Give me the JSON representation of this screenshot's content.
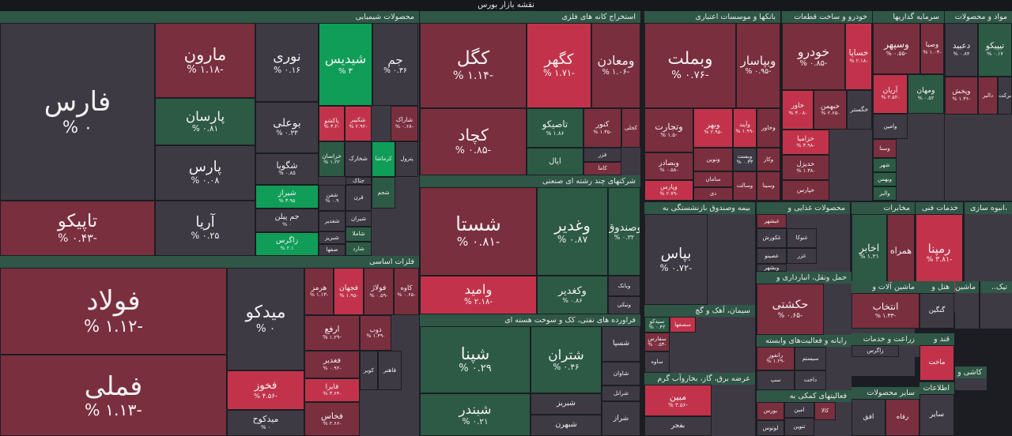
{
  "page_title": "نقشه بازار بورس",
  "colors": {
    "up_strong": "#0f9d58",
    "up": "#2d5a45",
    "flat": "#3e3a44",
    "down": "#7a2f3e",
    "down_strong": "#c2334b",
    "header": "#2f5647"
  },
  "chart_data": {
    "type": "treemap",
    "title": "نقشه بازار بورس",
    "sectors": [
      {
        "name": "محصولات شیمیایی",
        "tiles": [
          {
            "sym": "فارس",
            "chg": "% ۰",
            "tone": "flat"
          },
          {
            "sym": "تاپیکو",
            "chg": "% ۰.۴۳-",
            "tone": "down"
          },
          {
            "sym": "مارون",
            "chg": "% ۱.۱۸-",
            "tone": "down"
          },
          {
            "sym": "پارسان",
            "chg": "% ۰.۸۱",
            "tone": "up"
          },
          {
            "sym": "پارس",
            "chg": "% ۰.۰۸",
            "tone": "flat"
          },
          {
            "sym": "آریا",
            "chg": "% ۰.۲۵",
            "tone": "flat"
          },
          {
            "sym": "نوری",
            "chg": "% ۰.۱۶",
            "tone": "flat"
          },
          {
            "sym": "بوعلی",
            "chg": "% ۰.۳۳",
            "tone": "flat"
          },
          {
            "sym": "شیدیس",
            "chg": "% ۳",
            "tone": "up_strong"
          },
          {
            "sym": "جم",
            "chg": "% ۰.۳۶",
            "tone": "flat"
          },
          {
            "sym": "پاکشو",
            "chg": "% ۳.۲-",
            "tone": "down_strong"
          },
          {
            "sym": "شکبیر",
            "chg": "% ۲.۹۲-",
            "tone": "down_strong"
          },
          {
            "sym": "شاراک",
            "chg": "% ۰.۶۸-",
            "tone": "down"
          },
          {
            "sym": "شگویا",
            "chg": "% ۰.۸۵",
            "tone": "flat"
          },
          {
            "sym": "خراسان",
            "chg": "% ۱.۲۲",
            "tone": "up"
          },
          {
            "sym": "شخارک",
            "chg": "",
            "tone": "flat"
          },
          {
            "sym": "کرماشا",
            "chg": "",
            "tone": "up_strong"
          },
          {
            "sym": "پترول",
            "chg": "",
            "tone": "flat"
          },
          {
            "sym": "شیراز",
            "chg": "% ۳.۹۵",
            "tone": "up_strong"
          },
          {
            "sym": "شفن",
            "chg": "% ۰.۹",
            "tone": "flat"
          },
          {
            "sym": "قرن",
            "chg": "",
            "tone": "flat"
          },
          {
            "sym": "جم پیلن",
            "chg": "% ۰",
            "tone": "flat"
          },
          {
            "sym": "شغدیر",
            "chg": "",
            "tone": "flat"
          },
          {
            "sym": "زاگرس",
            "chg": "% ۲.۱",
            "tone": "up_strong"
          },
          {
            "sym": "شبریز",
            "chg": "",
            "tone": "flat"
          },
          {
            "sym": "شیران",
            "chg": "",
            "tone": "flat"
          },
          {
            "sym": "صفها",
            "chg": "",
            "tone": "flat"
          },
          {
            "sym": "شاملا",
            "chg": "",
            "tone": "up"
          },
          {
            "sym": "شارد",
            "chg": "",
            "tone": "up"
          },
          {
            "sym": "شجم",
            "chg": "",
            "tone": "up"
          },
          {
            "sym": "جتاک",
            "chg": "",
            "tone": "flat"
          }
        ]
      },
      {
        "name": "فلزات اساسی",
        "tiles": [
          {
            "sym": "فولاد",
            "chg": "% ۱.۱۲-",
            "tone": "down"
          },
          {
            "sym": "فملی",
            "chg": "% ۱.۱۳-",
            "tone": "down"
          },
          {
            "sym": "میدکو",
            "chg": "% ۰",
            "tone": "flat"
          },
          {
            "sym": "فخوز",
            "chg": "% ۴.۵۶-",
            "tone": "down_strong"
          },
          {
            "sym": "میدکوح",
            "chg": "% ۰",
            "tone": "flat"
          },
          {
            "sym": "هرمز",
            "chg": "% ۱.۱۳-",
            "tone": "down"
          },
          {
            "sym": "فجهان",
            "chg": "% ۱.۹۵-",
            "tone": "down_strong"
          },
          {
            "sym": "فولاژ",
            "chg": "% ۰.۵۹-",
            "tone": "down"
          },
          {
            "sym": "کاوه",
            "chg": "% ۰.۶۵-",
            "tone": "down"
          },
          {
            "sym": "ارفع",
            "chg": "% ۱.۲۹-",
            "tone": "down"
          },
          {
            "sym": "ذوب",
            "chg": "% ۱.۴۹-",
            "tone": "down"
          },
          {
            "sym": "فغدیر",
            "chg": "% ۰.۹۲-",
            "tone": "down"
          },
          {
            "sym": "فایرا",
            "chg": "% ۳.۶۴-",
            "tone": "down_strong"
          },
          {
            "sym": "فخاس",
            "chg": "% ۲.۶۶-",
            "tone": "down"
          },
          {
            "sym": "فاهنر",
            "chg": "",
            "tone": "flat"
          },
          {
            "sym": "کویر",
            "chg": "",
            "tone": "flat"
          }
        ]
      },
      {
        "name": "استخراج کانه های فلزی",
        "tiles": [
          {
            "sym": "کگل",
            "chg": "% ۱.۱۴-",
            "tone": "down"
          },
          {
            "sym": "کچاد",
            "chg": "% ۰.۸۵-",
            "tone": "down"
          },
          {
            "sym": "کگهر",
            "chg": "% ۱.۷۱-",
            "tone": "down_strong"
          },
          {
            "sym": "ومعادن",
            "chg": "% ۱.۰۶-",
            "tone": "down"
          },
          {
            "sym": "تاصیکو",
            "chg": "% ۱.۸۶",
            "tone": "up"
          },
          {
            "sym": "کنور",
            "chg": "% ۱.۳۵-",
            "tone": "down"
          },
          {
            "sym": "کجلی",
            "chg": "",
            "tone": "down"
          },
          {
            "sym": "فزر",
            "chg": "",
            "tone": "flat"
          },
          {
            "sym": "ایال",
            "chg": "",
            "tone": "up"
          },
          {
            "sym": "کاما",
            "chg": "",
            "tone": "down"
          }
        ]
      },
      {
        "name": "شرکتهای چند رشته ای صنعتی",
        "tiles": [
          {
            "sym": "شستا",
            "chg": "% ۰.۸۱-",
            "tone": "down"
          },
          {
            "sym": "وغدیر",
            "chg": "% ۰.۸۷",
            "tone": "up"
          },
          {
            "sym": "وصندوق",
            "chg": "% ۰.۳۲",
            "tone": "up"
          },
          {
            "sym": "وامید",
            "chg": "% ۲.۱۸-",
            "tone": "down_strong"
          },
          {
            "sym": "وکغدیر",
            "chg": "% ۰.۸۶",
            "tone": "up"
          },
          {
            "sym": "وبانک",
            "chg": "",
            "tone": "flat"
          },
          {
            "sym": "ونیکی",
            "chg": "",
            "tone": "flat"
          }
        ]
      },
      {
        "name": "فراورده های نفتی، کک و سوخت هسته ای",
        "tiles": [
          {
            "sym": "شپنا",
            "chg": "% ۰.۲۹",
            "tone": "up"
          },
          {
            "sym": "شتران",
            "chg": "% ۰.۴۶",
            "tone": "up"
          },
          {
            "sym": "شبندر",
            "chg": "% ۰.۲۱",
            "tone": "up"
          },
          {
            "sym": "شبریز",
            "chg": "",
            "tone": "flat"
          },
          {
            "sym": "شبهرن",
            "chg": "",
            "tone": "flat"
          },
          {
            "sym": "شسپا",
            "chg": "",
            "tone": "flat"
          },
          {
            "sym": "شراز",
            "chg": "",
            "tone": "flat"
          },
          {
            "sym": "شاوان",
            "chg": "",
            "tone": "flat"
          },
          {
            "sym": "شرانل",
            "chg": "",
            "tone": "flat"
          }
        ]
      },
      {
        "name": "بانکها و موسسات اعتباری",
        "tiles": [
          {
            "sym": "وبملت",
            "chg": "% ۰.۷۶-",
            "tone": "down"
          },
          {
            "sym": "وبپاسار",
            "chg": "% ۰.۹۵-",
            "tone": "down"
          },
          {
            "sym": "وتجارت",
            "chg": "% ۱.۵-",
            "tone": "down"
          },
          {
            "sym": "وبصادر",
            "chg": "% ۰.۵۸-",
            "tone": "down"
          },
          {
            "sym": "وپارس",
            "chg": "% ۲.۷۹-",
            "tone": "down_strong"
          },
          {
            "sym": "وبهر",
            "chg": "% ۲.۹۵-",
            "tone": "down_strong"
          },
          {
            "sym": "وآیند",
            "chg": "% ۱.۹۹-",
            "tone": "down_strong"
          },
          {
            "sym": "وخاور",
            "chg": "",
            "tone": "down"
          },
          {
            "sym": "ونوین",
            "chg": "",
            "tone": "down"
          },
          {
            "sym": "وبست",
            "chg": "% ۰.۳۳",
            "tone": "flat"
          },
          {
            "sym": "وکار",
            "chg": "",
            "tone": "down"
          },
          {
            "sym": "سامان",
            "chg": "",
            "tone": "down"
          },
          {
            "sym": "وسالت",
            "chg": "",
            "tone": "down"
          },
          {
            "sym": "دی",
            "chg": "",
            "tone": "down"
          },
          {
            "sym": "وسینا",
            "chg": "",
            "tone": "down"
          }
        ]
      },
      {
        "name": "خودرو و ساخت قطعات",
        "tiles": [
          {
            "sym": "خودرو",
            "chg": "% ۰.۸۵-",
            "tone": "down"
          },
          {
            "sym": "خساپا",
            "chg": "% ۲.۱۸-",
            "tone": "down_strong"
          },
          {
            "sym": "خاور",
            "chg": "% ۳.۰۸-",
            "tone": "down_strong"
          },
          {
            "sym": "خبهمن",
            "chg": "% ۲.۶۵-",
            "tone": "down"
          },
          {
            "sym": "خگستر",
            "chg": "",
            "tone": "flat"
          },
          {
            "sym": "خزامیا",
            "chg": "% ۳.۹۸-",
            "tone": "down_strong"
          },
          {
            "sym": "خدیزل",
            "chg": "% ۱.۳۸-",
            "tone": "down"
          },
          {
            "sym": "خپارس",
            "chg": "",
            "tone": "down"
          }
        ]
      },
      {
        "name": "سرمایه گذاریها",
        "tiles": [
          {
            "sym": "وسپهر",
            "chg": "% ۰.۵۵-",
            "tone": "down"
          },
          {
            "sym": "وصبا",
            "chg": "% ۱.۰۳-",
            "tone": "down"
          },
          {
            "sym": "آریان",
            "chg": "% ۲.۵۲-",
            "tone": "down_strong"
          },
          {
            "sym": "ومهان",
            "chg": "% ۰.۵۲",
            "tone": "up"
          },
          {
            "sym": "وامین",
            "chg": "",
            "tone": "flat"
          },
          {
            "sym": "وسنا",
            "chg": "",
            "tone": "down"
          },
          {
            "sym": "شهر",
            "chg": "",
            "tone": "up"
          },
          {
            "sym": "وبهمن",
            "chg": "",
            "tone": "up"
          },
          {
            "sym": "والبر",
            "chg": "",
            "tone": "up"
          }
        ]
      },
      {
        "name": "مواد و محصولات",
        "tiles": [
          {
            "sym": "دعبید",
            "chg": "% ۰.۸۴",
            "tone": "flat"
          },
          {
            "sym": "تیپیکو",
            "chg": "% ۰.۱۷",
            "tone": "up"
          },
          {
            "sym": "وپخش",
            "chg": "% ۱.۳۶-",
            "tone": "down"
          },
          {
            "sym": "دالبر",
            "chg": "",
            "tone": "down"
          },
          {
            "sym": "برکت",
            "chg": "",
            "tone": "flat"
          }
        ]
      },
      {
        "name": "بیمه وصندوق بازنشستگی به",
        "tiles": [
          {
            "sym": "بپاس",
            "chg": "% ۰.۷۲-",
            "tone": "flat"
          }
        ]
      },
      {
        "name": "محصولات غذایی و",
        "tiles": [
          {
            "sym": "غبشهر",
            "chg": "",
            "tone": "down"
          },
          {
            "sym": "غکورش",
            "chg": "",
            "tone": "flat"
          },
          {
            "sym": "غنوکا",
            "chg": "",
            "tone": "flat"
          },
          {
            "sym": "غصینو",
            "chg": "",
            "tone": "flat"
          },
          {
            "sym": "غزر",
            "chg": "",
            "tone": "flat"
          },
          {
            "sym": "وبشهر",
            "chg": "",
            "tone": "flat"
          }
        ]
      },
      {
        "name": "مخابرات",
        "tiles": [
          {
            "sym": "اخابر",
            "chg": "% ۱.۲۱",
            "tone": "up"
          },
          {
            "sym": "همراه",
            "chg": "",
            "tone": "down"
          }
        ]
      },
      {
        "name": "خدمات فنی",
        "tiles": [
          {
            "sym": "رمپنا",
            "chg": "% ۳.۸۱-",
            "tone": "down_strong"
          }
        ]
      },
      {
        "name": "انبوه سازی،",
        "tiles": []
      },
      {
        "name": "حمل ونقل، انبارداری و",
        "tiles": [
          {
            "sym": "حکشتی",
            "chg": "% ۰.۶۵-",
            "tone": "down"
          }
        ]
      },
      {
        "name": "سیمان، آهک و گچ",
        "tiles": [
          {
            "sym": "سیدکو",
            "chg": "% ۰.۴۲",
            "tone": "up"
          },
          {
            "sym": "سصفها",
            "chg": "",
            "tone": "down_strong"
          },
          {
            "sym": "سفارس",
            "chg": "% ۰.۵۳-",
            "tone": "down"
          },
          {
            "sym": "ساوه",
            "chg": "",
            "tone": "flat"
          }
        ]
      },
      {
        "name": "عرضه برق، گاز، بخاروآب گرم",
        "tiles": [
          {
            "sym": "مبین",
            "chg": "% ۳.۵۶-",
            "tone": "down_strong"
          },
          {
            "sym": "بفجر",
            "chg": "",
            "tone": "flat"
          }
        ]
      },
      {
        "name": "رایانه و فعالیت‌های وابسته",
        "tiles": [
          {
            "sym": "رانفور",
            "chg": "% ۱.۲۹-",
            "tone": "down"
          },
          {
            "sym": "سیستم",
            "chg": "",
            "tone": "flat"
          },
          {
            "sym": "سپ",
            "chg": "",
            "tone": "flat"
          },
          {
            "sym": "داخت",
            "chg": "",
            "tone": "flat"
          }
        ]
      },
      {
        "name": "فعالیتهای کمکی به",
        "tiles": [
          {
            "sym": "بورس",
            "chg": "",
            "tone": "down"
          },
          {
            "sym": "امین",
            "chg": "",
            "tone": "flat"
          },
          {
            "sym": "لوتوس",
            "chg": "",
            "tone": "flat"
          },
          {
            "sym": "کالا",
            "chg": "",
            "tone": "down"
          },
          {
            "sym": "تنوین",
            "chg": "",
            "tone": "flat"
          }
        ]
      },
      {
        "name": "ماشین آلات و",
        "tiles": [
          {
            "sym": "انتخاب",
            "chg": "% ۱.۳۳-",
            "tone": "down"
          }
        ]
      },
      {
        "name": "هتل و",
        "tiles": [
          {
            "sym": "گنگین",
            "chg": "",
            "tone": "flat"
          }
        ]
      },
      {
        "name": "ماشین",
        "tiles": []
      },
      {
        "name": "..تیک",
        "tiles": []
      },
      {
        "name": "زراعت و خدمات",
        "tiles": [
          {
            "sym": "زاگرس",
            "chg": "",
            "tone": "flat"
          }
        ]
      },
      {
        "name": "قند و",
        "tiles": [
          {
            "sym": "ماخت",
            "chg": "",
            "tone": "down_strong"
          }
        ]
      },
      {
        "name": "کاشی و",
        "tiles": []
      },
      {
        "name": "سایر محصولات",
        "tiles": [
          {
            "sym": "افق",
            "chg": "",
            "tone": "flat"
          },
          {
            "sym": "رفاه",
            "chg": "",
            "tone": "down"
          }
        ]
      },
      {
        "name": "اطلاعات",
        "tiles": [
          {
            "sym": "سایر",
            "chg": "",
            "tone": "flat"
          }
        ]
      }
    ]
  }
}
